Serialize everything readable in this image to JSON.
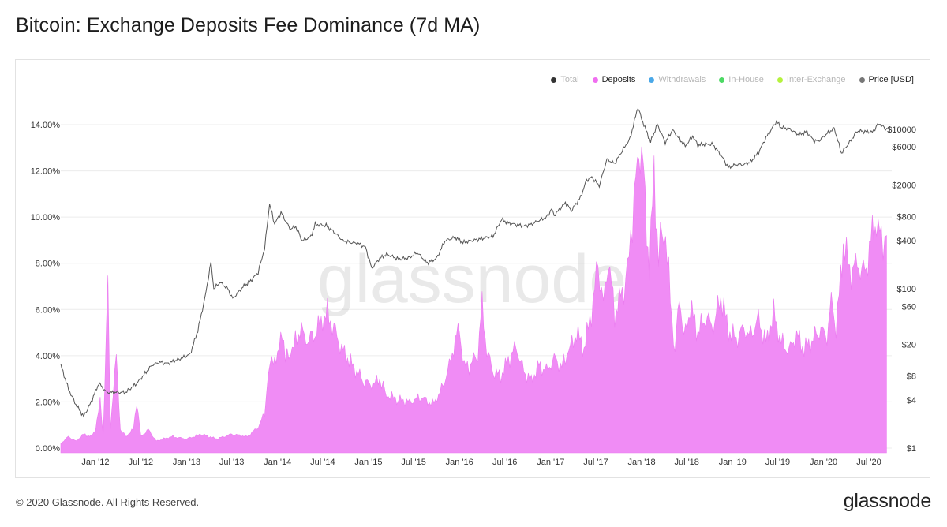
{
  "header": {
    "title": "Bitcoin: Exchange Deposits Fee Dominance (7d MA)"
  },
  "legend": [
    {
      "label": "Total",
      "color": "#333333",
      "active": false
    },
    {
      "label": "Deposits",
      "color": "#f06ef0",
      "active": true
    },
    {
      "label": "Withdrawals",
      "color": "#4aa8e8",
      "active": false
    },
    {
      "label": "In-House",
      "color": "#4cd964",
      "active": false
    },
    {
      "label": "Inter-Exchange",
      "color": "#b5f23d",
      "active": false
    },
    {
      "label": "Price [USD]",
      "color": "#777777",
      "active": true
    }
  ],
  "watermark": "glassnode",
  "footer": {
    "copyright": "© 2020 Glassnode. All Rights Reserved.",
    "brand": "glassnode"
  },
  "colors": {
    "deposits_fill": "#f08cf5",
    "price_line": "#555555",
    "grid": "#ececec"
  },
  "chart_data": {
    "type": "area",
    "title": "Bitcoin: Exchange Deposits Fee Dominance (7d MA)",
    "xlabel": "",
    "ylabel": "",
    "x_ticks": [
      "Jan '12",
      "Jul '12",
      "Jan '13",
      "Jul '13",
      "Jan '14",
      "Jul '14",
      "Jan '15",
      "Jul '15",
      "Jan '16",
      "Jul '16",
      "Jan '17",
      "Jul '17",
      "Jan '18",
      "Jul '18",
      "Jan '19",
      "Jul '19",
      "Jan '20",
      "Jul '20"
    ],
    "x_range": [
      "2011-08-15",
      "2020-09-15"
    ],
    "y_left": {
      "ticks": [
        "0.00%",
        "2.00%",
        "4.00%",
        "6.00%",
        "8.00%",
        "10.00%",
        "12.00%",
        "14.00%"
      ],
      "range": [
        0,
        14
      ]
    },
    "y_right": {
      "scale": "log",
      "ticks": [
        "$1",
        "$4",
        "$8",
        "$20",
        "$60",
        "$100",
        "$400",
        "$800",
        "$2000",
        "$6000",
        "$10000"
      ],
      "range": [
        1,
        18000
      ]
    },
    "grid": "horizontal",
    "legend_position": "top-right",
    "series": [
      {
        "name": "Deposits",
        "axis": "left",
        "unit": "%",
        "points": [
          [
            "2011-08-15",
            0.2
          ],
          [
            "2011-09-15",
            0.5
          ],
          [
            "2011-10-15",
            0.3
          ],
          [
            "2011-11-15",
            0.6
          ],
          [
            "2011-12-15",
            0.5
          ],
          [
            "2012-01-01",
            0.8
          ],
          [
            "2012-01-20",
            2.0
          ],
          [
            "2012-02-01",
            0.6
          ],
          [
            "2012-02-20",
            7.1
          ],
          [
            "2012-03-01",
            0.9
          ],
          [
            "2012-03-25",
            4.0
          ],
          [
            "2012-04-10",
            0.8
          ],
          [
            "2012-05-01",
            0.5
          ],
          [
            "2012-06-01",
            0.8
          ],
          [
            "2012-06-15",
            2.0
          ],
          [
            "2012-07-01",
            0.5
          ],
          [
            "2012-08-01",
            0.8
          ],
          [
            "2012-09-01",
            0.3
          ],
          [
            "2012-11-01",
            0.5
          ],
          [
            "2013-01-01",
            0.4
          ],
          [
            "2013-03-01",
            0.6
          ],
          [
            "2013-05-01",
            0.4
          ],
          [
            "2013-07-01",
            0.6
          ],
          [
            "2013-09-01",
            0.5
          ],
          [
            "2013-10-15",
            0.9
          ],
          [
            "2013-11-10",
            1.5
          ],
          [
            "2013-11-25",
            3.2
          ],
          [
            "2013-12-15",
            4.0
          ],
          [
            "2014-01-01",
            3.8
          ],
          [
            "2014-01-20",
            5.3
          ],
          [
            "2014-02-01",
            3.8
          ],
          [
            "2014-03-01",
            4.2
          ],
          [
            "2014-04-01",
            5.2
          ],
          [
            "2014-05-01",
            4.6
          ],
          [
            "2014-06-01",
            5.0
          ],
          [
            "2014-07-01",
            5.6
          ],
          [
            "2014-07-20",
            5.8
          ],
          [
            "2014-08-15",
            5.2
          ],
          [
            "2014-09-15",
            4.3
          ],
          [
            "2014-10-15",
            3.8
          ],
          [
            "2014-11-15",
            3.3
          ],
          [
            "2014-12-15",
            2.9
          ],
          [
            "2015-01-15",
            2.7
          ],
          [
            "2015-02-15",
            3.0
          ],
          [
            "2015-03-15",
            2.3
          ],
          [
            "2015-05-01",
            2.1
          ],
          [
            "2015-06-15",
            2.0
          ],
          [
            "2015-08-01",
            2.2
          ],
          [
            "2015-09-15",
            1.9
          ],
          [
            "2015-10-15",
            2.4
          ],
          [
            "2015-11-15",
            3.3
          ],
          [
            "2015-12-15",
            4.7
          ],
          [
            "2016-01-01",
            5.1
          ],
          [
            "2016-01-20",
            3.5
          ],
          [
            "2016-02-15",
            3.6
          ],
          [
            "2016-03-15",
            4.2
          ],
          [
            "2016-04-01",
            6.1
          ],
          [
            "2016-04-20",
            4.2
          ],
          [
            "2016-05-15",
            3.3
          ],
          [
            "2016-06-15",
            3.1
          ],
          [
            "2016-07-15",
            3.8
          ],
          [
            "2016-08-15",
            4.4
          ],
          [
            "2016-09-15",
            3.3
          ],
          [
            "2016-10-15",
            2.9
          ],
          [
            "2016-11-15",
            3.6
          ],
          [
            "2016-12-15",
            3.3
          ],
          [
            "2017-01-15",
            3.9
          ],
          [
            "2017-02-15",
            3.5
          ],
          [
            "2017-03-15",
            4.2
          ],
          [
            "2017-04-15",
            5.0
          ],
          [
            "2017-05-15",
            4.3
          ],
          [
            "2017-06-01",
            5.2
          ],
          [
            "2017-06-20",
            6.3
          ],
          [
            "2017-07-10",
            8.0
          ],
          [
            "2017-08-01",
            6.2
          ],
          [
            "2017-08-20",
            8.2
          ],
          [
            "2017-09-15",
            5.8
          ],
          [
            "2017-10-15",
            6.7
          ],
          [
            "2017-11-05",
            7.5
          ],
          [
            "2017-11-25",
            10.0
          ],
          [
            "2017-12-15",
            12.3
          ],
          [
            "2018-01-01",
            13.5
          ],
          [
            "2018-01-15",
            10.3
          ],
          [
            "2018-02-01",
            7.9
          ],
          [
            "2018-02-20",
            11.8
          ],
          [
            "2018-03-10",
            8.3
          ],
          [
            "2018-04-01",
            9.8
          ],
          [
            "2018-04-20",
            7.4
          ],
          [
            "2018-05-15",
            4.0
          ],
          [
            "2018-06-01",
            6.8
          ],
          [
            "2018-06-20",
            4.7
          ],
          [
            "2018-07-15",
            6.1
          ],
          [
            "2018-08-15",
            5.0
          ],
          [
            "2018-09-15",
            5.7
          ],
          [
            "2018-10-15",
            5.2
          ],
          [
            "2018-11-15",
            6.6
          ],
          [
            "2018-12-15",
            5.1
          ],
          [
            "2019-01-15",
            4.7
          ],
          [
            "2019-02-15",
            5.2
          ],
          [
            "2019-03-15",
            4.9
          ],
          [
            "2019-04-15",
            5.6
          ],
          [
            "2019-05-15",
            4.5
          ],
          [
            "2019-06-15",
            5.8
          ],
          [
            "2019-07-15",
            4.6
          ],
          [
            "2019-08-15",
            4.2
          ],
          [
            "2019-09-15",
            4.9
          ],
          [
            "2019-10-15",
            4.3
          ],
          [
            "2019-11-15",
            4.6
          ],
          [
            "2019-12-15",
            5.2
          ],
          [
            "2020-01-15",
            4.8
          ],
          [
            "2020-02-01",
            6.4
          ],
          [
            "2020-02-20",
            5.2
          ],
          [
            "2020-03-10",
            7.3
          ],
          [
            "2020-03-20",
            9.1
          ],
          [
            "2020-04-15",
            7.6
          ],
          [
            "2020-05-15",
            8.0
          ],
          [
            "2020-06-15",
            7.5
          ],
          [
            "2020-07-15",
            9.3
          ],
          [
            "2020-08-01",
            9.8
          ],
          [
            "2020-08-20",
            8.9
          ],
          [
            "2020-09-10",
            9.2
          ]
        ]
      },
      {
        "name": "Price [USD]",
        "axis": "right",
        "unit": "USD",
        "points": [
          [
            "2011-08-15",
            11
          ],
          [
            "2011-09-15",
            5.5
          ],
          [
            "2011-10-15",
            3.5
          ],
          [
            "2011-11-15",
            2.5
          ],
          [
            "2011-12-15",
            3.8
          ],
          [
            "2012-01-15",
            6.5
          ],
          [
            "2012-02-15",
            5.0
          ],
          [
            "2012-03-15",
            5.0
          ],
          [
            "2012-05-01",
            5.0
          ],
          [
            "2012-06-15",
            6.5
          ],
          [
            "2012-08-15",
            11
          ],
          [
            "2012-09-15",
            12
          ],
          [
            "2012-10-15",
            11.5
          ],
          [
            "2012-12-01",
            13
          ],
          [
            "2013-01-15",
            15
          ],
          [
            "2013-02-15",
            30
          ],
          [
            "2013-03-15",
            75
          ],
          [
            "2013-04-09",
            215
          ],
          [
            "2013-04-20",
            100
          ],
          [
            "2013-05-15",
            120
          ],
          [
            "2013-06-15",
            100
          ],
          [
            "2013-07-05",
            75
          ],
          [
            "2013-08-15",
            105
          ],
          [
            "2013-09-15",
            125
          ],
          [
            "2013-10-15",
            160
          ],
          [
            "2013-11-10",
            320
          ],
          [
            "2013-11-30",
            1150
          ],
          [
            "2013-12-20",
            650
          ],
          [
            "2014-01-15",
            900
          ],
          [
            "2014-02-20",
            560
          ],
          [
            "2014-03-15",
            600
          ],
          [
            "2014-04-10",
            400
          ],
          [
            "2014-05-15",
            450
          ],
          [
            "2014-06-01",
            640
          ],
          [
            "2014-07-15",
            620
          ],
          [
            "2014-08-20",
            500
          ],
          [
            "2014-09-20",
            400
          ],
          [
            "2014-10-20",
            380
          ],
          [
            "2014-11-20",
            370
          ],
          [
            "2014-12-20",
            330
          ],
          [
            "2015-01-14",
            180
          ],
          [
            "2015-02-15",
            240
          ],
          [
            "2015-03-15",
            270
          ],
          [
            "2015-05-01",
            235
          ],
          [
            "2015-06-15",
            245
          ],
          [
            "2015-07-15",
            285
          ],
          [
            "2015-08-25",
            210
          ],
          [
            "2015-10-01",
            240
          ],
          [
            "2015-11-04",
            400
          ],
          [
            "2015-12-15",
            440
          ],
          [
            "2016-01-15",
            380
          ],
          [
            "2016-03-15",
            415
          ],
          [
            "2016-05-15",
            455
          ],
          [
            "2016-06-18",
            740
          ],
          [
            "2016-07-15",
            665
          ],
          [
            "2016-09-15",
            610
          ],
          [
            "2016-10-15",
            640
          ],
          [
            "2016-11-15",
            720
          ],
          [
            "2016-12-15",
            780
          ],
          [
            "2017-01-05",
            1000
          ],
          [
            "2017-01-15",
            830
          ],
          [
            "2017-03-01",
            1200
          ],
          [
            "2017-03-25",
            950
          ],
          [
            "2017-05-01",
            1400
          ],
          [
            "2017-05-25",
            2300
          ],
          [
            "2017-06-15",
            2500
          ],
          [
            "2017-07-15",
            1950
          ],
          [
            "2017-08-15",
            4200
          ],
          [
            "2017-09-15",
            3700
          ],
          [
            "2017-10-20",
            5700
          ],
          [
            "2017-11-15",
            7500
          ],
          [
            "2017-12-17",
            19000
          ],
          [
            "2018-01-01",
            13500
          ],
          [
            "2018-02-06",
            6900
          ],
          [
            "2018-03-05",
            11500
          ],
          [
            "2018-04-06",
            6800
          ],
          [
            "2018-05-05",
            9800
          ],
          [
            "2018-06-25",
            6100
          ],
          [
            "2018-07-25",
            8200
          ],
          [
            "2018-08-15",
            6300
          ],
          [
            "2018-09-15",
            6500
          ],
          [
            "2018-10-15",
            6400
          ],
          [
            "2018-11-20",
            4500
          ],
          [
            "2018-12-15",
            3300
          ],
          [
            "2019-01-15",
            3600
          ],
          [
            "2019-02-15",
            3600
          ],
          [
            "2019-03-15",
            3900
          ],
          [
            "2019-04-15",
            5100
          ],
          [
            "2019-05-15",
            7800
          ],
          [
            "2019-06-26",
            12500
          ],
          [
            "2019-07-15",
            10500
          ],
          [
            "2019-08-15",
            10200
          ],
          [
            "2019-09-25",
            8500
          ],
          [
            "2019-10-26",
            9300
          ],
          [
            "2019-11-25",
            7100
          ],
          [
            "2019-12-15",
            7200
          ],
          [
            "2020-01-15",
            8800
          ],
          [
            "2020-02-13",
            10300
          ],
          [
            "2020-03-13",
            5000
          ],
          [
            "2020-04-15",
            6900
          ],
          [
            "2020-05-15",
            9500
          ],
          [
            "2020-06-15",
            9400
          ],
          [
            "2020-07-15",
            9200
          ],
          [
            "2020-08-10",
            11800
          ],
          [
            "2020-09-05",
            10200
          ],
          [
            "2020-09-12",
            10400
          ]
        ]
      }
    ]
  }
}
